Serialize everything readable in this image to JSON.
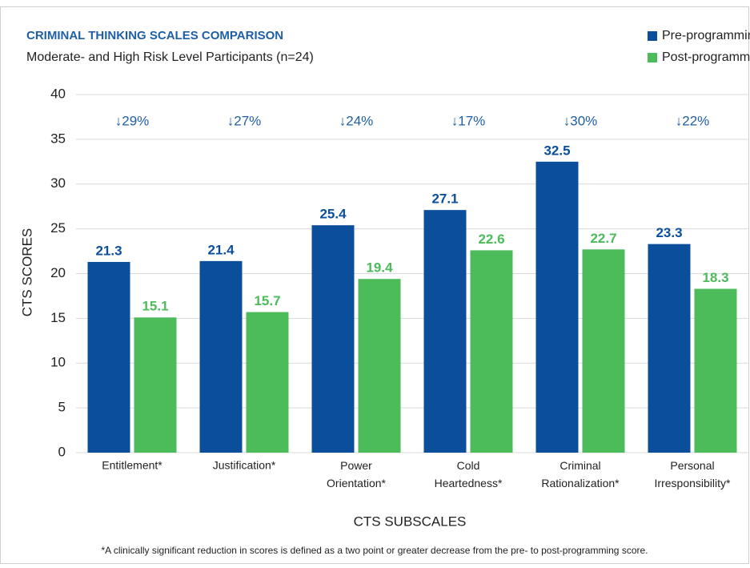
{
  "chart_data": {
    "type": "bar",
    "title": "CRIMINAL THINKING SCALES COMPARISON",
    "subtitle": "Moderate- and High Risk Level Participants (n=24)",
    "x_label": "CTS SUBSCALES",
    "y_label": "CTS SCORES",
    "footnote": "*A clinically significant reduction in scores is defined as a two point or greater decrease from the pre- to post-programming score.",
    "categories": [
      "Entitlement*",
      "Justification*",
      "Power Orientation*",
      "Cold Heartedness*",
      "Criminal Rationalization*",
      "Personal Irresponsibility*"
    ],
    "annotations": [
      "↓29%",
      "↓27%",
      "↓24%",
      "↓17%",
      "↓30%",
      "↓22%"
    ],
    "series": [
      {
        "name": "Pre-programming",
        "color": "#0b4f9c",
        "values": [
          21.3,
          21.4,
          25.4,
          27.1,
          32.5,
          23.3
        ]
      },
      {
        "name": "Post-programming",
        "color": "#4cbb5a",
        "values": [
          15.1,
          15.7,
          19.4,
          22.6,
          22.7,
          18.3
        ]
      }
    ],
    "ylim": [
      0,
      40
    ],
    "yticks": [
      0,
      5,
      10,
      15,
      20,
      25,
      30,
      35,
      40
    ],
    "grid": true,
    "legend": "top-right"
  }
}
